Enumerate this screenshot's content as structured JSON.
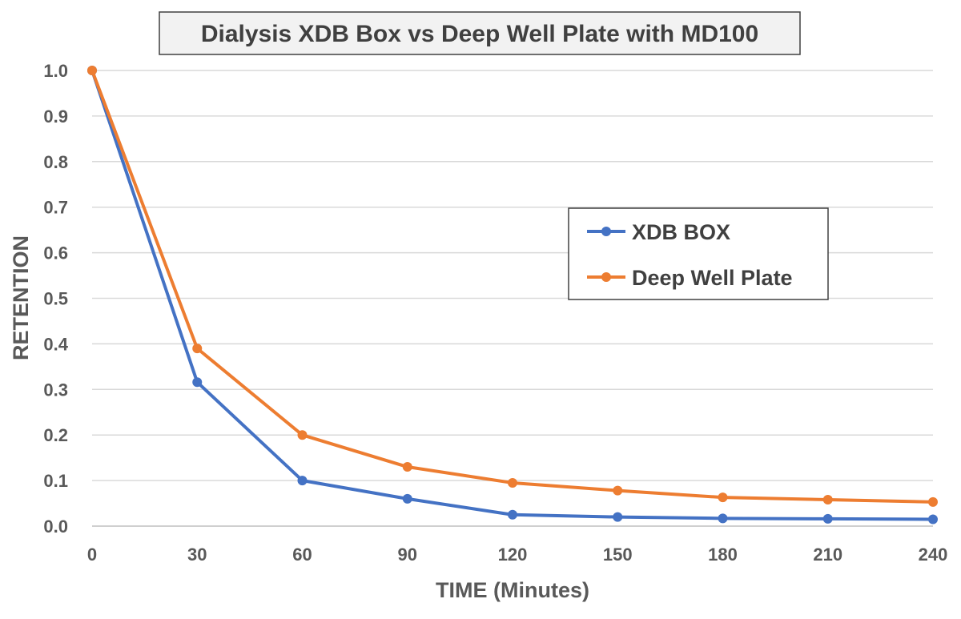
{
  "chart_data": {
    "type": "line",
    "title": "Dialysis XDB Box vs Deep Well Plate with MD100",
    "xlabel": "TIME (Minutes)",
    "ylabel": "RETENTION",
    "x": [
      0,
      30,
      60,
      90,
      120,
      150,
      180,
      210,
      240
    ],
    "xlim": [
      0,
      240
    ],
    "ylim": [
      0,
      1.0
    ],
    "yticks": [
      "0.0",
      "0.1",
      "0.2",
      "0.3",
      "0.4",
      "0.5",
      "0.6",
      "0.7",
      "0.8",
      "0.9",
      "1.0"
    ],
    "grid": true,
    "legend_position": "right-middle",
    "series": [
      {
        "name": "XDB BOX",
        "color": "#4472c4",
        "values": [
          1.0,
          0.316,
          0.1,
          0.06,
          0.025,
          0.02,
          0.017,
          0.016,
          0.015
        ]
      },
      {
        "name": "Deep Well Plate",
        "color": "#ed7d31",
        "values": [
          1.0,
          0.39,
          0.2,
          0.13,
          0.095,
          0.078,
          0.063,
          0.058,
          0.053
        ]
      }
    ]
  }
}
